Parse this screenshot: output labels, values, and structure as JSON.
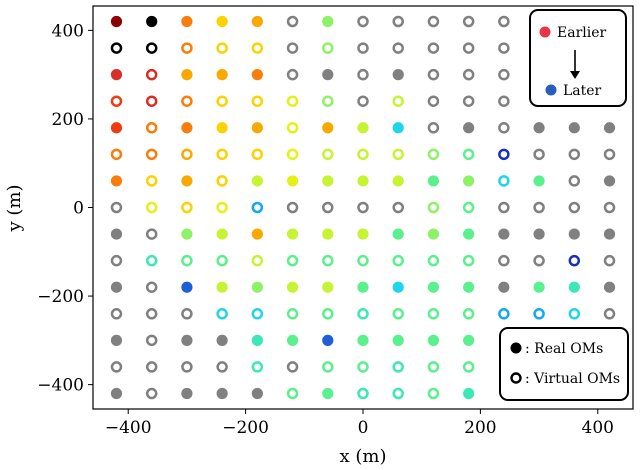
{
  "chart_data": {
    "type": "scatter",
    "title": "",
    "xlabel": "x (m)",
    "ylabel": "y (m)",
    "xlim": [
      -460,
      460
    ],
    "ylim": [
      -455,
      455
    ],
    "xticks": [
      -400,
      -200,
      0,
      200,
      400
    ],
    "yticks": [
      -400,
      -200,
      0,
      200,
      400
    ],
    "xtick_labels": [
      "−400",
      "−200",
      "0",
      "200",
      "400"
    ],
    "ytick_labels": [
      "−400",
      "−200",
      "0",
      "200",
      "400"
    ],
    "grid": false,
    "x_positions": [
      -420,
      -360,
      -300,
      -240,
      -180,
      -120,
      -60,
      0,
      60,
      120,
      180,
      240,
      300,
      360,
      420
    ],
    "y_positions": [
      420,
      360,
      300,
      240,
      180,
      120,
      60,
      0,
      -60,
      -120,
      -180,
      -240,
      -300,
      -360,
      -420
    ],
    "inactive_color": "#808080",
    "palette": {
      "A": "#8b0000",
      "B": "#d73027",
      "C": "#f03b10",
      "D": "#f87d0a",
      "E": "#f9a800",
      "F": "#fcd200",
      "G": "#e6f016",
      "H": "#c6f432",
      "I": "#8ef266",
      "J": "#5bf08e",
      "K": "#3ce8b6",
      "L": "#1ed6e8",
      "M": "#12a8f4",
      "N": "#1e5ed6",
      "O": "#1a2ec0"
    },
    "grid_rows": [
      "A- R- D- F- E- x. I- x. x. x. x. x. .. .. ..",
      "R. R. D. F. F. x. I. x. x. x. x. x. .. .. ..",
      "B- B. E- E- D- x. x- x. x- x. x. x. .. .. ..",
      "C. B. D. F. F. G. I. x. H. x. x. x. .. .. ..",
      "C- D. D- F- E- G. E- H- L- x. x- x. x- x- x-",
      "D. D. E. F. F. G. H. H. H. I. J. O. x. x. x.",
      "D- F. E- F. H- G- H- H- H- J- I- L. J- x. x-",
      "x. G. F. G. M. x. x. x. x. I. J. x. x. x. x.",
      "x- x. I- H- E- H- H- H- J- I- J- x- x- x- x-",
      "x. K. J. J. H. J. J. J. J. J. J. x. x. O. x.",
      "x- x. N- H- I- H- H- J- L- J- J- x- J- K- x-",
      "x. x. x. L. L. J. J. K. J. J. J. M. M. L. x.",
      "x- x. x- x- K- J- N- J- J- J- J- .. .. .. ..",
      "x. x. x. x. K. x. J. J. K. J. J. .. .. .. ..",
      "x- x. x- x- x- J. J- K. K. J. K- .. .. .. .."
    ],
    "legend_time": {
      "placement": "top-right",
      "earlier_label": "Earlier",
      "later_label": "Later",
      "earlier_color": "#e8354d",
      "later_color": "#2a5ebc"
    },
    "legend_type": {
      "placement": "bottom-right",
      "real_label": ": Real OMs",
      "virtual_label": ": Virtual OMs"
    }
  }
}
